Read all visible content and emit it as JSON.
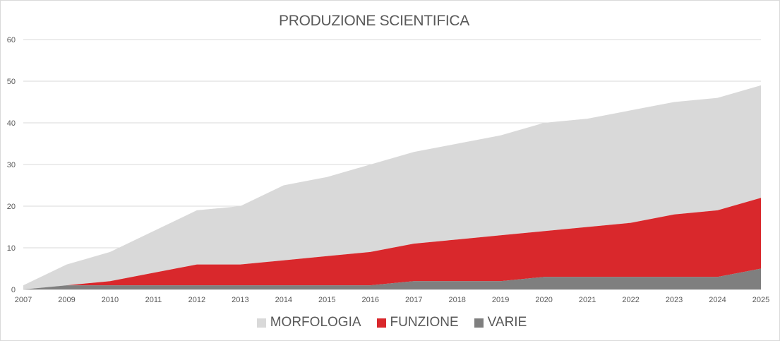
{
  "chart_data": {
    "type": "area",
    "stacked": true,
    "title": "PRODUZIONE SCIENTIFICA",
    "xlabel": "",
    "ylabel": "",
    "categories": [
      "2007",
      "2009",
      "2010",
      "2011",
      "2012",
      "2013",
      "2014",
      "2015",
      "2016",
      "2017",
      "2018",
      "2019",
      "2020",
      "2021",
      "2022",
      "2023",
      "2024",
      "2025"
    ],
    "ylim": [
      0,
      60
    ],
    "yticks": [
      0,
      10,
      20,
      30,
      40,
      50,
      60
    ],
    "grid": true,
    "legend_position": "bottom",
    "series": [
      {
        "name": "VARIE",
        "color": "#7f7f7f",
        "values": [
          0,
          1,
          1,
          1,
          1,
          1,
          1,
          1,
          1,
          2,
          2,
          2,
          3,
          3,
          3,
          3,
          3,
          5
        ]
      },
      {
        "name": "FUNZIONE",
        "color": "#d9282c",
        "values": [
          0,
          0,
          1,
          3,
          5,
          5,
          6,
          7,
          8,
          9,
          10,
          11,
          11,
          12,
          13,
          15,
          16,
          17
        ]
      },
      {
        "name": "MORFOLOGIA",
        "color": "#d9d9d9",
        "values": [
          1,
          5,
          7,
          10,
          13,
          14,
          18,
          19,
          21,
          22,
          23,
          24,
          26,
          26,
          27,
          27,
          27,
          27
        ]
      }
    ],
    "legend_order": [
      "MORFOLOGIA",
      "FUNZIONE",
      "VARIE"
    ]
  }
}
